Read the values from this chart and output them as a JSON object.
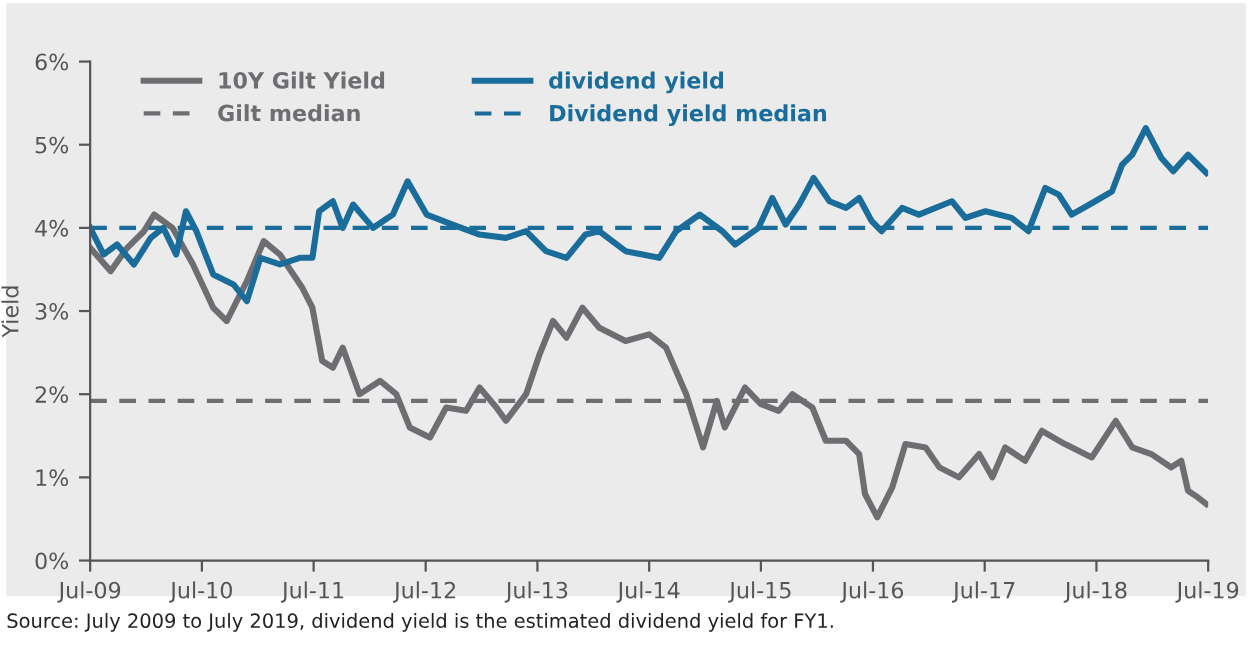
{
  "chart_data": {
    "type": "line",
    "ylabel": "Yield",
    "xlim": [
      "2009-07-01",
      "2019-07-01"
    ],
    "xticks": [
      {
        "value": "2009-07-01",
        "label": "Jul-09"
      },
      {
        "value": "2010-07-01",
        "label": "Jul-10"
      },
      {
        "value": "2011-07-01",
        "label": "Jul-11"
      },
      {
        "value": "2012-07-01",
        "label": "Jul-12"
      },
      {
        "value": "2013-07-01",
        "label": "Jul-13"
      },
      {
        "value": "2014-07-01",
        "label": "Jul-14"
      },
      {
        "value": "2015-07-01",
        "label": "Jul-15"
      },
      {
        "value": "2016-07-01",
        "label": "Jul-16"
      },
      {
        "value": "2017-07-01",
        "label": "Jul-17"
      },
      {
        "value": "2018-07-01",
        "label": "Jul-18"
      },
      {
        "value": "2019-07-01",
        "label": "Jul-19"
      }
    ],
    "ylim": [
      0,
      6
    ],
    "yticks": [
      {
        "value": 0,
        "label": "0%"
      },
      {
        "value": 1,
        "label": "1%"
      },
      {
        "value": 2,
        "label": "2%"
      },
      {
        "value": 3,
        "label": "3%"
      },
      {
        "value": 4,
        "label": "4%"
      },
      {
        "value": 5,
        "label": "5%"
      },
      {
        "value": 6,
        "label": "6%"
      }
    ],
    "grid": false,
    "legend": "top",
    "marker": "none",
    "line_style": "solid",
    "series": [
      {
        "name": "10Y Gilt Yield",
        "color": "#6d6e71",
        "x": [
          "2009-07-01",
          "2009-09-06",
          "2009-10-30",
          "2009-12-24",
          "2010-01-26",
          "2010-03-27",
          "2010-06-02",
          "2010-08-07",
          "2010-09-20",
          "2010-11-25",
          "2011-01-19",
          "2011-03-13",
          "2011-05-25",
          "2011-06-27",
          "2011-07-29",
          "2011-09-02",
          "2011-10-04",
          "2011-11-28",
          "2012-02-03",
          "2012-03-27",
          "2012-05-10",
          "2012-07-15",
          "2012-09-06",
          "2012-11-10",
          "2012-12-24",
          "2013-02-17",
          "2013-03-20",
          "2013-05-25",
          "2013-07-08",
          "2013-08-21",
          "2013-10-04",
          "2013-11-25",
          "2014-01-19",
          "2014-04-15",
          "2014-07-01",
          "2014-08-25",
          "2014-10-30",
          "2014-12-24",
          "2015-02-07",
          "2015-03-05",
          "2015-05-10",
          "2015-07-01",
          "2015-08-28",
          "2015-10-12",
          "2015-12-16",
          "2016-01-29",
          "2016-04-04",
          "2016-05-17",
          "2016-06-05",
          "2016-07-15",
          "2016-09-02",
          "2016-10-15",
          "2016-12-20",
          "2017-02-03",
          "2017-04-08",
          "2017-06-13",
          "2017-07-26",
          "2017-09-06",
          "2017-11-10",
          "2018-01-04",
          "2018-03-20",
          "2018-06-16",
          "2018-09-02",
          "2018-10-26",
          "2018-12-27",
          "2019-03-02",
          "2019-04-04",
          "2019-04-26",
          "2019-05-28",
          "2019-06-25"
        ],
        "values": [
          3.76,
          3.48,
          3.76,
          3.96,
          4.16,
          4.0,
          3.56,
          3.04,
          2.88,
          3.36,
          3.84,
          3.68,
          3.28,
          3.04,
          2.4,
          2.32,
          2.56,
          2.0,
          2.16,
          2.0,
          1.6,
          1.48,
          1.84,
          1.8,
          2.08,
          1.84,
          1.68,
          2.0,
          2.48,
          2.88,
          2.68,
          3.04,
          2.8,
          2.64,
          2.72,
          2.56,
          2.0,
          1.36,
          1.92,
          1.6,
          2.08,
          1.88,
          1.8,
          2.0,
          1.84,
          1.44,
          1.44,
          1.28,
          0.8,
          0.52,
          0.88,
          1.4,
          1.36,
          1.12,
          1.0,
          1.28,
          1.0,
          1.36,
          1.2,
          1.56,
          1.4,
          1.24,
          1.68,
          1.36,
          1.28,
          1.12,
          1.2,
          0.84,
          0.76,
          0.68
        ]
      },
      {
        "name": "dividend yield",
        "color": "#1a6d9a",
        "x": [
          "2009-07-01",
          "2009-08-14",
          "2009-09-27",
          "2009-11-21",
          "2010-01-15",
          "2010-02-25",
          "2010-04-08",
          "2010-05-10",
          "2010-06-13",
          "2010-08-07",
          "2010-10-12",
          "2010-11-25",
          "2011-01-08",
          "2011-03-13",
          "2011-05-17",
          "2011-06-27",
          "2011-07-19",
          "2011-09-02",
          "2011-10-04",
          "2011-11-07",
          "2012-01-11",
          "2012-03-16",
          "2012-05-03",
          "2012-07-04",
          "2012-09-27",
          "2012-12-24",
          "2013-03-20",
          "2013-05-25",
          "2013-07-29",
          "2013-10-04",
          "2013-12-05",
          "2014-01-19",
          "2014-04-15",
          "2014-08-03",
          "2014-09-27",
          "2014-12-13",
          "2015-02-25",
          "2015-04-08",
          "2015-06-23",
          "2015-08-07",
          "2015-09-20",
          "2015-11-03",
          "2015-12-20",
          "2016-02-10",
          "2016-04-04",
          "2016-05-17",
          "2016-06-27",
          "2016-07-29",
          "2016-10-04",
          "2016-11-28",
          "2017-03-16",
          "2017-04-29",
          "2017-07-04",
          "2017-09-27",
          "2017-11-21",
          "2018-01-15",
          "2018-02-28",
          "2018-04-11",
          "2018-06-27",
          "2018-08-21",
          "2018-09-23",
          "2018-10-26",
          "2018-12-09",
          "2019-01-29",
          "2019-03-09",
          "2019-04-26",
          "2019-06-25"
        ],
        "values": [
          4.0,
          3.68,
          3.8,
          3.56,
          3.88,
          4.0,
          3.68,
          4.2,
          3.96,
          3.44,
          3.32,
          3.12,
          3.64,
          3.56,
          3.64,
          3.64,
          4.2,
          4.32,
          4.0,
          4.28,
          4.0,
          4.16,
          4.56,
          4.16,
          4.04,
          3.92,
          3.88,
          3.96,
          3.72,
          3.64,
          3.92,
          3.96,
          3.72,
          3.64,
          3.96,
          4.16,
          3.96,
          3.8,
          4.0,
          4.36,
          4.04,
          4.28,
          4.6,
          4.32,
          4.24,
          4.36,
          4.08,
          3.96,
          4.24,
          4.16,
          4.32,
          4.12,
          4.2,
          4.12,
          3.96,
          4.48,
          4.4,
          4.16,
          4.32,
          4.44,
          4.76,
          4.88,
          5.2,
          4.84,
          4.68,
          4.88,
          4.66
        ]
      }
    ],
    "ref_lines": [
      {
        "axis": "y",
        "value": 1.92,
        "label": "Gilt median",
        "color": "#6d6e71",
        "line_style": "dashed"
      },
      {
        "axis": "y",
        "value": 4.0,
        "label": "Dividend yield median",
        "color": "#1a6d9a",
        "line_style": "dashed"
      }
    ],
    "annotations": [
      "Source: July 2009 to July 2019, dividend yield is the estimated dividend yield for FY1."
    ]
  }
}
